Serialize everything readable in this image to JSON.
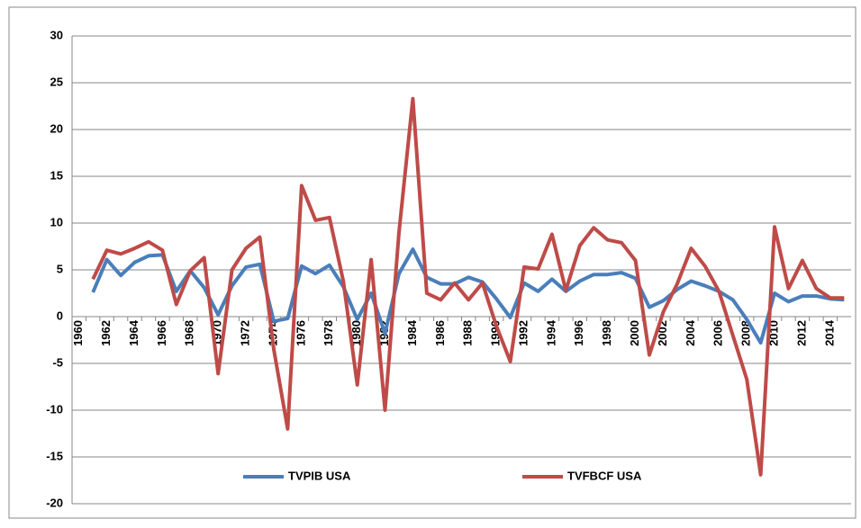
{
  "chart_data": {
    "type": "line",
    "categories": [
      "1960",
      null,
      "1962",
      null,
      "1964",
      null,
      "1966",
      null,
      "1968",
      null,
      "1970",
      null,
      "1972",
      null,
      "1974",
      null,
      "1976",
      null,
      "1978",
      null,
      "1980",
      null,
      "1982",
      null,
      "1984",
      null,
      "1986",
      null,
      "1988",
      null,
      "1990",
      null,
      "1992",
      null,
      "1994",
      null,
      "1996",
      null,
      "1998",
      null,
      "2000",
      null,
      "2002",
      null,
      "2004",
      null,
      "2006",
      null,
      "2008",
      null,
      "2010",
      null,
      "2012",
      null,
      "2014",
      null
    ],
    "series": [
      {
        "name": "TVPIB USA",
        "color": "#4a7ebb",
        "values": [
          null,
          2.6,
          6.1,
          4.4,
          5.8,
          6.5,
          6.6,
          2.7,
          4.9,
          3.1,
          0.2,
          3.3,
          5.3,
          5.6,
          -0.5,
          -0.2,
          5.4,
          4.6,
          5.5,
          3.2,
          -0.3,
          2.5,
          -1.8,
          4.6,
          7.2,
          4.2,
          3.5,
          3.5,
          4.2,
          3.7,
          1.9,
          -0.1,
          3.6,
          2.7,
          4.0,
          2.7,
          3.8,
          4.5,
          4.5,
          4.7,
          4.1,
          1.0,
          1.7,
          2.9,
          3.8,
          3.3,
          2.7,
          1.8,
          -0.3,
          -2.8,
          2.5,
          1.6,
          2.2,
          2.2,
          1.9,
          1.8
        ]
      },
      {
        "name": "TVFBCF USA",
        "color": "#be4b48",
        "values": [
          null,
          4.0,
          7.1,
          6.7,
          7.3,
          8.0,
          7.1,
          1.3,
          4.9,
          6.3,
          -6.1,
          5.0,
          7.3,
          8.5,
          -3.5,
          -12.0,
          14.0,
          10.3,
          10.6,
          3.8,
          -7.3,
          6.1,
          -10.0,
          9.0,
          23.3,
          2.5,
          1.8,
          3.6,
          1.8,
          3.6,
          -1.0,
          -4.8,
          5.3,
          5.1,
          8.8,
          2.8,
          7.6,
          9.5,
          8.2,
          7.9,
          6.0,
          -4.1,
          0.5,
          3.5,
          7.3,
          5.4,
          2.7,
          -2.0,
          -6.7,
          -16.9,
          9.6,
          3.0,
          6.0,
          3.0,
          2.0,
          2.0
        ]
      }
    ],
    "ylim": [
      -20,
      30
    ],
    "yticks": [
      -20,
      -15,
      -10,
      -5,
      0,
      5,
      10,
      15,
      20,
      25,
      30
    ],
    "grid": true,
    "legend": "bottom"
  }
}
